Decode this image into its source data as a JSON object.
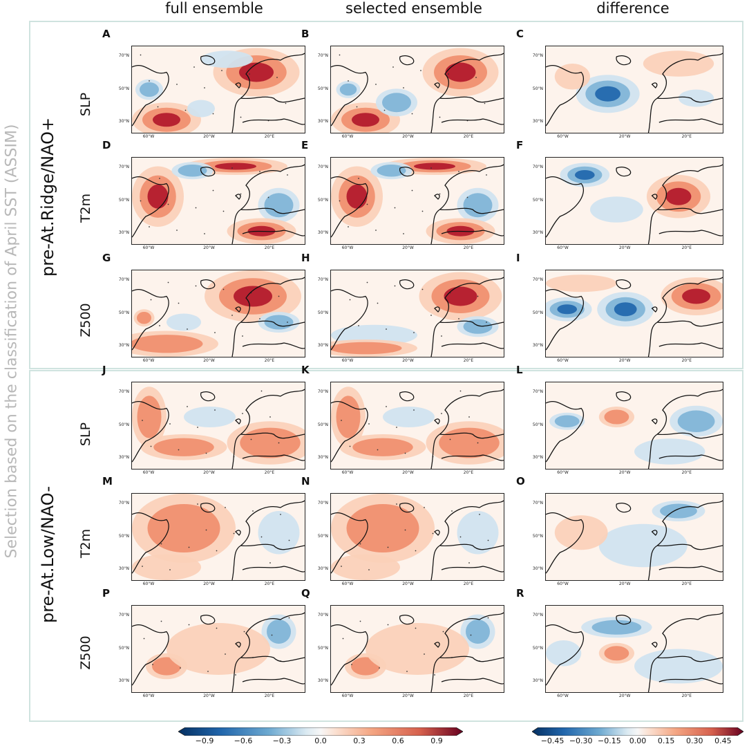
{
  "columns": [
    "full ensemble",
    "selected ensemble",
    "difference"
  ],
  "outer_label": "Selection based on the classification of April SST (ASSIM)",
  "groups": [
    "pre-At.Ridge/NAO+",
    "pre-At.Low/NAO-"
  ],
  "rows": [
    "SLP",
    "T2m",
    "Z500",
    "SLP",
    "T2m",
    "Z500"
  ],
  "panels": [
    "A",
    "B",
    "C",
    "D",
    "E",
    "F",
    "G",
    "H",
    "I",
    "J",
    "K",
    "L",
    "M",
    "N",
    "O",
    "P",
    "Q",
    "R"
  ],
  "lat_labels": [
    "70°N",
    "50°N",
    "30°N"
  ],
  "lon_labels": [
    "60°W",
    "20°W",
    "20°E"
  ],
  "colorbar_left": {
    "ticks": [
      "−0.9",
      "−0.6",
      "−0.3",
      "0.0",
      "0.3",
      "0.6",
      "0.9"
    ],
    "range": [
      -1.0,
      1.0
    ]
  },
  "colorbar_right": {
    "ticks": [
      "−0.45",
      "−0.30",
      "−0.15",
      "0.00",
      "0.15",
      "0.30",
      "0.45"
    ],
    "range": [
      -0.5,
      0.5
    ]
  },
  "colors": {
    "neg_strong": "#053061",
    "neg": "#4393c3",
    "neutral": "#f7f7f7",
    "pos": "#f4a582",
    "pos_strong": "#67001f",
    "frame": "#cfe3df"
  }
}
